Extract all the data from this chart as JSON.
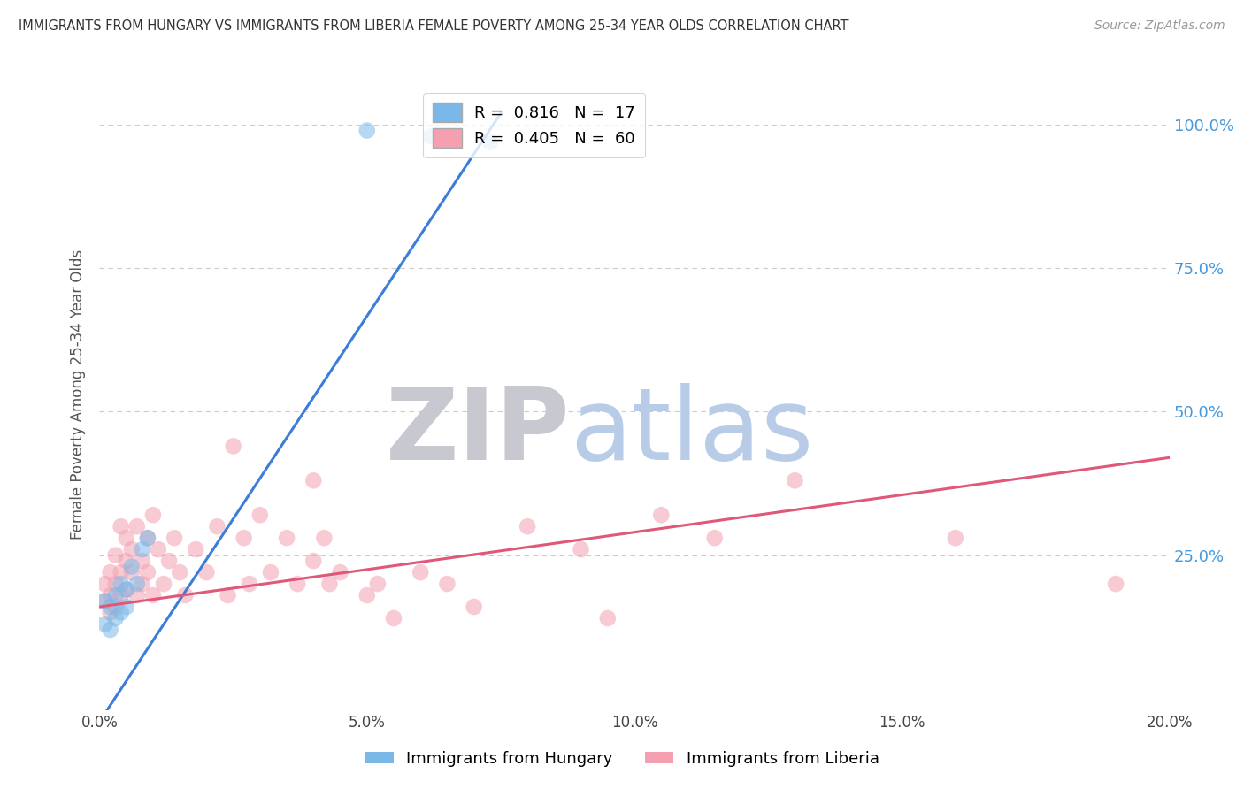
{
  "title": "IMMIGRANTS FROM HUNGARY VS IMMIGRANTS FROM LIBERIA FEMALE POVERTY AMONG 25-34 YEAR OLDS CORRELATION CHART",
  "source": "Source: ZipAtlas.com",
  "ylabel": "Female Poverty Among 25-34 Year Olds",
  "xlim": [
    0.0,
    0.2
  ],
  "ylim": [
    -0.02,
    1.08
  ],
  "xtick_labels": [
    "0.0%",
    "5.0%",
    "10.0%",
    "15.0%",
    "20.0%"
  ],
  "xtick_vals": [
    0.0,
    0.05,
    0.1,
    0.15,
    0.2
  ],
  "ytick_labels_right": [
    "100.0%",
    "75.0%",
    "50.0%",
    "25.0%"
  ],
  "ytick_vals_right": [
    1.0,
    0.75,
    0.5,
    0.25
  ],
  "background_color": "#ffffff",
  "grid_color": "#cccccc",
  "hungary_color": "#7ab8e8",
  "liberia_color": "#f4a0b0",
  "hungary_line_color": "#3b7dd8",
  "liberia_line_color": "#e05878",
  "hungary_R": 0.816,
  "hungary_N": 17,
  "liberia_R": 0.405,
  "liberia_N": 60,
  "hungary_line_x0": 0.0,
  "hungary_line_y0": -0.04,
  "hungary_line_x1": 0.075,
  "hungary_line_y1": 1.02,
  "liberia_line_x0": 0.0,
  "liberia_line_y0": 0.16,
  "liberia_line_x1": 0.2,
  "liberia_line_y1": 0.42,
  "hungary_scatter_x": [
    0.001,
    0.001,
    0.002,
    0.002,
    0.003,
    0.003,
    0.004,
    0.004,
    0.005,
    0.005,
    0.006,
    0.007,
    0.008,
    0.009,
    0.05,
    0.062,
    0.073
  ],
  "hungary_scatter_y": [
    0.17,
    0.13,
    0.16,
    0.12,
    0.14,
    0.18,
    0.15,
    0.2,
    0.19,
    0.16,
    0.23,
    0.2,
    0.26,
    0.28,
    0.99,
    0.98,
    0.97
  ],
  "liberia_scatter_x": [
    0.001,
    0.001,
    0.002,
    0.002,
    0.002,
    0.003,
    0.003,
    0.003,
    0.004,
    0.004,
    0.004,
    0.005,
    0.005,
    0.005,
    0.006,
    0.006,
    0.007,
    0.007,
    0.008,
    0.008,
    0.009,
    0.009,
    0.01,
    0.01,
    0.011,
    0.012,
    0.013,
    0.014,
    0.015,
    0.016,
    0.018,
    0.02,
    0.022,
    0.024,
    0.025,
    0.027,
    0.028,
    0.03,
    0.032,
    0.035,
    0.037,
    0.04,
    0.04,
    0.042,
    0.043,
    0.045,
    0.05,
    0.052,
    0.055,
    0.06,
    0.065,
    0.07,
    0.08,
    0.09,
    0.095,
    0.105,
    0.115,
    0.13,
    0.16,
    0.19
  ],
  "liberia_scatter_y": [
    0.2,
    0.17,
    0.22,
    0.18,
    0.15,
    0.25,
    0.2,
    0.16,
    0.3,
    0.22,
    0.18,
    0.28,
    0.24,
    0.19,
    0.22,
    0.26,
    0.18,
    0.3,
    0.2,
    0.24,
    0.28,
    0.22,
    0.18,
    0.32,
    0.26,
    0.2,
    0.24,
    0.28,
    0.22,
    0.18,
    0.26,
    0.22,
    0.3,
    0.18,
    0.44,
    0.28,
    0.2,
    0.32,
    0.22,
    0.28,
    0.2,
    0.38,
    0.24,
    0.28,
    0.2,
    0.22,
    0.18,
    0.2,
    0.14,
    0.22,
    0.2,
    0.16,
    0.3,
    0.26,
    0.14,
    0.32,
    0.28,
    0.38,
    0.28,
    0.2
  ]
}
